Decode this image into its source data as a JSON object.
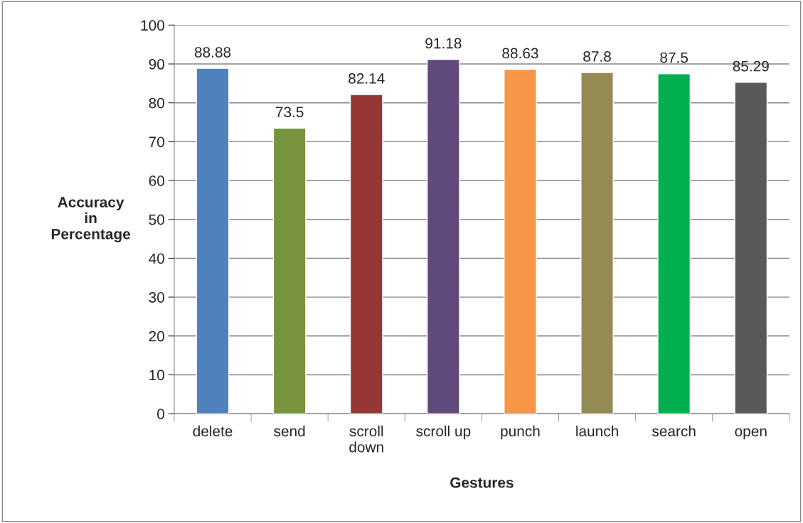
{
  "chart_data": {
    "type": "bar",
    "xlabel": "Gestures",
    "ylabel": "Accuracy\nin\nPercentage",
    "categories": [
      "delete",
      "send",
      "scroll\ndown",
      "scroll up",
      "punch",
      "launch",
      "search",
      "open"
    ],
    "values": [
      88.88,
      73.5,
      82.14,
      91.18,
      88.63,
      87.8,
      87.5,
      85.29
    ],
    "colors": [
      "#4f81bd",
      "#77933c",
      "#953735",
      "#604a7b",
      "#f79646",
      "#948a54",
      "#00b050",
      "#595959"
    ],
    "ylim": [
      0,
      100
    ],
    "yticks": [
      0,
      10,
      20,
      30,
      40,
      50,
      60,
      70,
      80,
      90,
      100
    ],
    "grid": "y",
    "data_labels": true
  }
}
